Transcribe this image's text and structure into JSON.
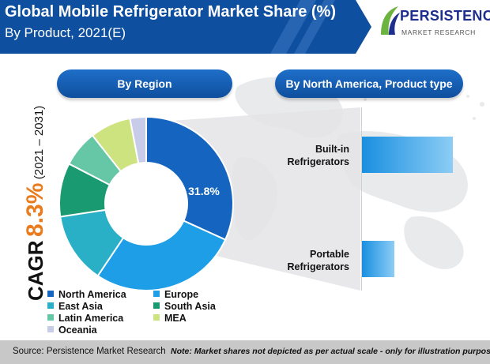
{
  "header": {
    "title": "Global Mobile Refrigerator Market Share (%)",
    "subtitle": "By Product, 2021(E)"
  },
  "logo": {
    "wordmark": "PERSISTENCE",
    "tagline": "MARKET RESEARCH"
  },
  "cagr": {
    "label": "CAGR",
    "value": "8.3%",
    "period": "(2021 – 2031)"
  },
  "colors": {
    "header": "#0e4f9f",
    "accent": "#e87c1e",
    "north_america": "#1565c0",
    "europe": "#1e9ee6",
    "east_asia": "#29b0c7",
    "south_asia": "#1a9a70",
    "latin_america": "#66c7a6",
    "mea": "#cde37f",
    "oceania": "#c9cce8"
  },
  "chart_data": [
    {
      "type": "pie",
      "title": "By Region",
      "donut": true,
      "slices": [
        {
          "name": "North America",
          "value": 31.8,
          "label": "31.8%",
          "color": "#1565c0"
        },
        {
          "name": "Europe",
          "value": 27.6,
          "color": "#1e9ee6"
        },
        {
          "name": "East Asia",
          "value": 13.2,
          "color": "#29b0c7"
        },
        {
          "name": "South Asia",
          "value": 10.0,
          "color": "#1a9a70"
        },
        {
          "name": "Latin America",
          "value": 6.8,
          "color": "#66c7a6"
        },
        {
          "name": "MEA",
          "value": 7.6,
          "color": "#cde37f"
        },
        {
          "name": "Oceania",
          "value": 3.0,
          "color": "#c9cce8"
        }
      ],
      "legend": [
        "North America",
        "Europe",
        "East Asia",
        "South Asia",
        "Latin America",
        "MEA",
        "Oceania"
      ],
      "legend_placement": "bottom"
    },
    {
      "type": "bar",
      "orientation": "horizontal",
      "title": "By North America, Product type",
      "categories": [
        "Built-in Refrigerators",
        "Portable Refrigerators"
      ],
      "category_lines": [
        [
          "Built-in",
          "Refrigerators"
        ],
        [
          "Portable",
          "Refrigerators"
        ]
      ],
      "values": [
        0.74,
        0.26
      ],
      "xlabel": "",
      "ylabel": "",
      "grid": false
    }
  ],
  "footer": {
    "source": "Source: Persistence Market Research",
    "note": "Note: Market shares not depicted as per actual scale - only for illustration purposes"
  }
}
